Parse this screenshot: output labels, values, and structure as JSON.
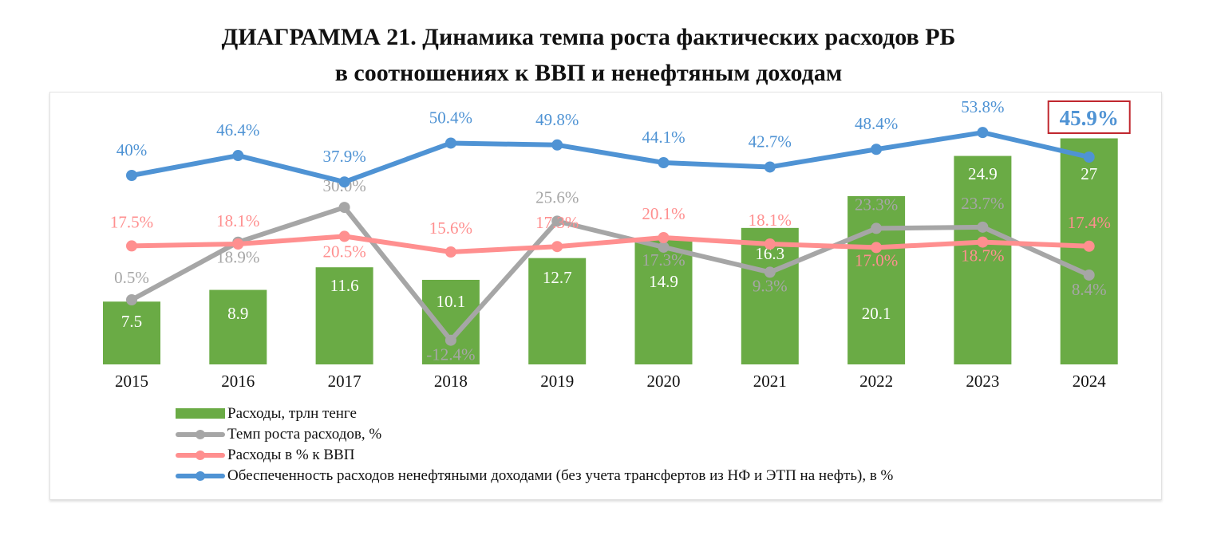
{
  "title_line1": "ДИАГРАММА 21.     Динамика темпа роста фактических расходов РБ",
  "title_line2": "в соотношениях к ВВП и ненефтяным доходам",
  "chart_data": {
    "type": "bar+line",
    "categories": [
      "2015",
      "2016",
      "2017",
      "2018",
      "2019",
      "2020",
      "2021",
      "2022",
      "2023",
      "2024"
    ],
    "series": [
      {
        "name": "Расходы, трлн тенге",
        "type": "bar",
        "color": "#6aab45",
        "values": [
          7.5,
          8.9,
          11.6,
          10.1,
          12.7,
          14.9,
          16.3,
          20.1,
          24.9,
          27
        ],
        "labels": [
          "7.5",
          "8.9",
          "11.6",
          "10.1",
          "12.7",
          "14.9",
          "16.3",
          "20.1",
          "24.9",
          "27"
        ]
      },
      {
        "name": "Темп роста расходов, %",
        "type": "line",
        "color": "#a6a6a6",
        "values": [
          0.5,
          18.9,
          30.0,
          -12.4,
          25.6,
          17.3,
          9.3,
          23.3,
          23.7,
          8.4
        ],
        "labels": [
          "0.5%",
          "18.9%",
          "30.0%",
          "-12.4%",
          "25.6%",
          "17.3%",
          "9.3%",
          "23.3%",
          "23.7%",
          "8.4%"
        ]
      },
      {
        "name": "Расходы в % к ВВП",
        "type": "line",
        "color": "#ff8f8f",
        "values": [
          17.5,
          18.1,
          20.5,
          15.6,
          17.3,
          20.1,
          18.1,
          17.0,
          18.7,
          17.4
        ],
        "labels": [
          "17.5%",
          "18.1%",
          "20.5%",
          "15.6%",
          "17.3%",
          "20.1%",
          "18.1%",
          "17.0%",
          "18.7%",
          "17.4%"
        ]
      },
      {
        "name": "Обеспеченность расходов ненефтяными доходами (без учета трансфертов из НФ и ЭТП на нефть), в %",
        "type": "line",
        "color": "#4f93d4",
        "values": [
          40,
          46.4,
          37.9,
          50.4,
          49.8,
          44.1,
          42.7,
          48.4,
          53.8,
          45.9
        ],
        "labels": [
          "40%",
          "46.4%",
          "37.9%",
          "50.4%",
          "49.8%",
          "44.1%",
          "42.7%",
          "48.4%",
          "53.8%",
          "45.9%"
        ]
      }
    ],
    "highlight": {
      "series": 3,
      "index": 9,
      "color": "#c0262d"
    },
    "legend_position": "bottom-left",
    "grid": false
  }
}
